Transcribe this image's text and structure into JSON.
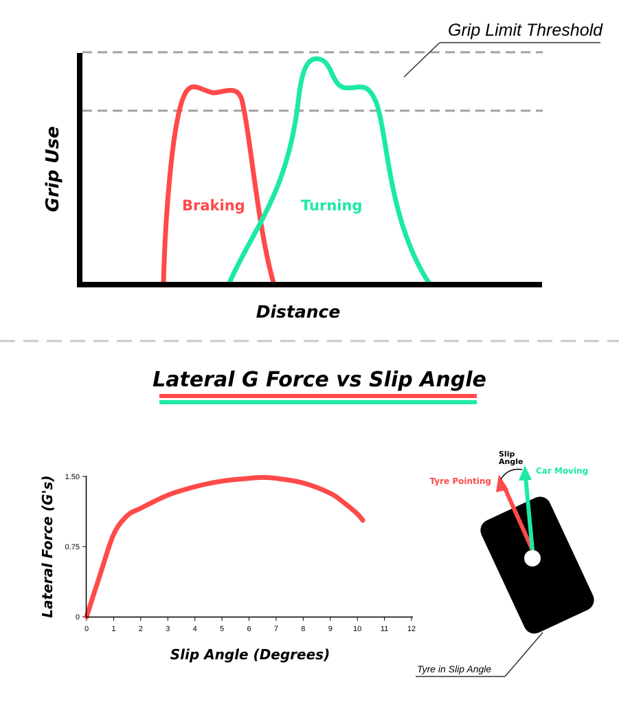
{
  "grip_chart": {
    "threshold_label": "Grip Limit Threshold",
    "ylabel": "Grip Use",
    "xlabel": "Distance",
    "braking_label": "Braking",
    "turning_label": "Turning",
    "colors": {
      "braking": "#ff4a4a",
      "turning": "#1de9a6"
    }
  },
  "section_title": "Lateral G Force vs Slip Angle",
  "chart_data": {
    "type": "line",
    "xlabel": "Slip Angle (Degrees)",
    "ylabel": "Lateral Force (G's)",
    "xlim": [
      0,
      12
    ],
    "ylim": [
      0,
      1.5
    ],
    "x_ticks": [
      "0",
      "1",
      "2",
      "3",
      "4",
      "5",
      "6",
      "7",
      "8",
      "9",
      "10",
      "11",
      "12"
    ],
    "y_ticks": [
      "0",
      "0.75",
      "1.50"
    ],
    "grid": false,
    "series": [
      {
        "color": "#ff4a4a",
        "x": [
          0,
          0.5,
          1.0,
          1.5,
          2.0,
          3.0,
          4.0,
          5.0,
          6.0,
          6.5,
          7.0,
          8.0,
          9.0,
          9.5,
          10.0,
          10.2
        ],
        "y": [
          0,
          0.45,
          0.88,
          1.08,
          1.16,
          1.3,
          1.39,
          1.45,
          1.48,
          1.49,
          1.48,
          1.43,
          1.32,
          1.22,
          1.1,
          1.03
        ]
      }
    ]
  },
  "tyre_diagram": {
    "slip_label_1": "Slip",
    "slip_label_2": "Angle",
    "tyre_pointing_label": "Tyre Pointing",
    "car_moving_label": "Car Moving",
    "caption": "Tyre in Slip Angle"
  }
}
